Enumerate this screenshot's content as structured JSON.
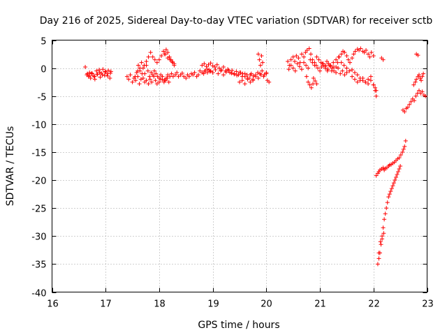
{
  "chart_data": {
    "type": "scatter",
    "title": "Day 216 of 2025, Sidereal Day-to-day VTEC variation (SDTVAR) for receiver sctb",
    "xlabel": "GPS time / hours",
    "ylabel": "SDTVAR / TECUs",
    "xlim": [
      16,
      23
    ],
    "ylim": [
      -40,
      5
    ],
    "xticks": [
      "16",
      "17",
      "18",
      "19",
      "20",
      "21",
      "22",
      "23"
    ],
    "yticks": [
      "5",
      "0",
      "-5",
      "-10",
      "-15",
      "-20",
      "-25",
      "-30",
      "-35",
      "-40"
    ],
    "grid": true,
    "marker": "+",
    "color": "#ff0000",
    "series": [
      {
        "name": "SDTVAR",
        "x": [
          16.62,
          16.65,
          16.68,
          16.7,
          16.72,
          16.75,
          16.78,
          16.8,
          16.83,
          16.85,
          16.88,
          16.9,
          16.92,
          16.95,
          16.98,
          17.0,
          17.03,
          17.05,
          17.08,
          17.1,
          16.66,
          16.7,
          16.74,
          16.79,
          16.84,
          16.89,
          16.94,
          16.99,
          17.04,
          17.09,
          17.4,
          17.43,
          17.46,
          17.5,
          17.53,
          17.56,
          17.6,
          17.63,
          17.66,
          17.7,
          17.73,
          17.76,
          17.8,
          17.83,
          17.86,
          17.9,
          17.93,
          17.96,
          18.0,
          18.03,
          18.06,
          18.1,
          18.13,
          18.16,
          18.2,
          18.23,
          18.26,
          18.3,
          18.33,
          18.36,
          18.4,
          18.43,
          18.46,
          18.5,
          18.53,
          18.56,
          18.6,
          18.63,
          18.66,
          18.7,
          18.73,
          18.76,
          18.8,
          18.83,
          18.86,
          18.9,
          18.93,
          18.96,
          17.6,
          17.64,
          17.68,
          17.72,
          17.76,
          17.8,
          17.84,
          17.88,
          17.92,
          17.96,
          18.0,
          18.04,
          18.08,
          18.12,
          18.16,
          18.2,
          18.24,
          18.28,
          17.55,
          17.58,
          17.61,
          17.64,
          17.67,
          17.7,
          17.73,
          17.76,
          17.79,
          17.82,
          17.85,
          17.88,
          17.91,
          17.94,
          17.97,
          18.0,
          18.03,
          18.06,
          18.09,
          18.12,
          18.15,
          18.18,
          18.1,
          18.13,
          18.16,
          18.19,
          18.22,
          18.25,
          18.28,
          18.8,
          18.84,
          18.88,
          18.92,
          18.96,
          19.0,
          19.04,
          19.08,
          19.12,
          19.16,
          19.2,
          19.24,
          19.28,
          19.32,
          19.36,
          19.4,
          19.44,
          19.48,
          19.52,
          19.56,
          19.6,
          19.64,
          19.68,
          19.72,
          19.76,
          19.8,
          19.84,
          19.88,
          19.92,
          19.96,
          20.0,
          18.85,
          18.9,
          18.95,
          19.0,
          19.05,
          19.1,
          19.15,
          19.2,
          19.25,
          19.3,
          19.35,
          19.4,
          19.45,
          19.5,
          19.55,
          19.6,
          19.65,
          19.7,
          19.75,
          19.8,
          19.85,
          19.9,
          19.95,
          19.5,
          19.55,
          19.6,
          19.65,
          19.7,
          19.75,
          19.85,
          19.87,
          19.89,
          19.91,
          19.93,
          20.0,
          20.02,
          20.05,
          20.4,
          20.43,
          20.46,
          20.5,
          20.53,
          20.56,
          20.6,
          20.63,
          20.66,
          20.7,
          20.73,
          20.76,
          20.8,
          20.83,
          20.86,
          20.9,
          20.93,
          20.96,
          21.0,
          21.03,
          21.06,
          21.1,
          21.13,
          21.16,
          21.2,
          21.23,
          21.26,
          21.3,
          21.33,
          21.36,
          21.4,
          21.43,
          21.46,
          21.5,
          21.53,
          21.56,
          21.6,
          21.63,
          21.66,
          21.7,
          21.73,
          21.76,
          21.8,
          21.83,
          21.86,
          21.9,
          21.93,
          21.96,
          22.0,
          20.42,
          20.46,
          20.5,
          20.54,
          20.58,
          20.62,
          20.66,
          20.7,
          20.74,
          20.78,
          20.82,
          20.86,
          20.9,
          20.94,
          20.98,
          21.02,
          21.06,
          21.1,
          21.14,
          21.18,
          21.22,
          21.26,
          21.3,
          21.34,
          21.38,
          21.42,
          21.46,
          21.5,
          20.75,
          20.78,
          20.81,
          20.84,
          20.87,
          20.88,
          20.91,
          20.94,
          21.05,
          21.1,
          21.15,
          21.2,
          21.25,
          21.3,
          21.35,
          21.4,
          21.45,
          21.5,
          21.55,
          21.6,
          21.65,
          21.7,
          21.75,
          21.8,
          21.85,
          21.9,
          21.95,
          22.0,
          22.03,
          22.05,
          21.6,
          21.65,
          21.7,
          21.75,
          21.8,
          21.85,
          21.9,
          21.95,
          22.0,
          22.03,
          22.05,
          22.15,
          22.18,
          22.05,
          22.08,
          22.1,
          22.12,
          22.15,
          22.18,
          22.2,
          22.22,
          22.25,
          22.28,
          22.3,
          22.33,
          22.36,
          22.39,
          22.42,
          22.45,
          22.48,
          22.51,
          22.54,
          22.56,
          22.58,
          22.6,
          22.08,
          22.1,
          22.12,
          22.14,
          22.16,
          22.18,
          22.2,
          22.22,
          22.24,
          22.26,
          22.28,
          22.3,
          22.32,
          22.34,
          22.36,
          22.38,
          22.4,
          22.42,
          22.44,
          22.46,
          22.48,
          22.5,
          22.1,
          22.13,
          22.16,
          22.19,
          22.55,
          22.58,
          22.61,
          22.64,
          22.67,
          22.7,
          22.73,
          22.76,
          22.79,
          22.82,
          22.85,
          22.88,
          22.91,
          22.94,
          22.97,
          22.75,
          22.78,
          22.8,
          22.83,
          22.85,
          22.87,
          22.89,
          22.91,
          22.93,
          22.8,
          22.83
        ],
        "y": [
          0.2,
          -1.2,
          -1.5,
          -0.8,
          -1.8,
          -1.0,
          -1.4,
          -2.0,
          -0.5,
          -1.1,
          -0.3,
          -1.6,
          -0.9,
          -0.2,
          -1.3,
          -0.7,
          -1.0,
          -0.4,
          -1.8,
          -0.6,
          -1.0,
          -1.3,
          -0.9,
          -1.5,
          -1.1,
          -0.8,
          -1.2,
          -0.6,
          -1.4,
          -0.9,
          -1.5,
          -2.0,
          -1.2,
          -2.5,
          -1.8,
          -2.2,
          -1.5,
          -2.8,
          -2.0,
          -1.8,
          -2.5,
          -2.2,
          -2.8,
          -2.0,
          -2.5,
          -1.5,
          -2.2,
          -2.8,
          -2.5,
          -2.0,
          -1.5,
          -2.2,
          -1.8,
          -1.2,
          -1.5,
          -1.0,
          -1.5,
          -1.2,
          -0.8,
          -1.5,
          -1.2,
          -0.9,
          -1.5,
          -1.8,
          -1.2,
          -1.5,
          -1.0,
          -1.2,
          -0.8,
          -1.5,
          -1.2,
          -0.5,
          -0.8,
          -1.0,
          -0.5,
          -0.8,
          -0.3,
          -0.5,
          -0.5,
          0.0,
          -1.0,
          0.5,
          1.2,
          2.0,
          2.8,
          2.0,
          1.5,
          1.0,
          1.5,
          2.2,
          3.0,
          2.5,
          1.8,
          1.5,
          1.2,
          0.8,
          -1.5,
          -0.8,
          0.5,
          -0.5,
          1.0,
          0.0,
          -1.0,
          0.5,
          -0.5,
          -1.5,
          -0.8,
          -1.2,
          -0.5,
          -1.0,
          -1.5,
          -1.8,
          -1.2,
          -2.0,
          -2.5,
          -2.2,
          -1.8,
          -2.5,
          2.5,
          3.3,
          2.8,
          2.0,
          1.5,
          1.0,
          0.5,
          0.5,
          0.8,
          0.3,
          0.6,
          0.9,
          0.4,
          0.2,
          0.6,
          0.0,
          -0.3,
          0.2,
          -0.5,
          -0.2,
          -0.8,
          -0.4,
          -1.0,
          -0.6,
          -1.2,
          -0.8,
          -1.0,
          -1.5,
          -1.2,
          -1.8,
          -1.0,
          -1.4,
          -1.2,
          -0.8,
          -1.0,
          -0.5,
          -1.2,
          -0.8,
          -0.5,
          -0.2,
          -0.6,
          -0.8,
          -0.3,
          -1.0,
          -0.5,
          -1.2,
          -0.7,
          -0.4,
          -0.9,
          -1.1,
          -1.3,
          -0.8,
          -1.5,
          -1.0,
          -1.8,
          -1.2,
          -2.0,
          -1.5,
          -1.8,
          -1.2,
          -1.5,
          -2.5,
          -2.2,
          -2.8,
          -2.0,
          -2.5,
          -2.2,
          2.5,
          1.5,
          0.5,
          2.2,
          1.0,
          -1.0,
          -2.2,
          -2.5,
          1.2,
          0.5,
          1.5,
          2.0,
          1.2,
          2.2,
          1.8,
          1.0,
          2.5,
          2.0,
          2.8,
          3.2,
          3.5,
          2.5,
          1.5,
          1.0,
          0.5,
          0.0,
          -0.5,
          0.2,
          0.8,
          0.5,
          1.2,
          0.8,
          0.3,
          0.0,
          -0.5,
          0.2,
          1.0,
          2.0,
          2.5,
          3.0,
          2.8,
          2.2,
          1.5,
          1.0,
          1.8,
          2.5,
          3.0,
          3.4,
          3.2,
          3.5,
          3.0,
          2.8,
          3.2,
          2.5,
          2.0,
          2.8,
          2.2,
          -0.2,
          0.5,
          0.0,
          -0.5,
          0.8,
          0.3,
          -0.2,
          1.0,
          0.5,
          0.0,
          1.5,
          1.0,
          0.5,
          2.0,
          1.5,
          1.0,
          0.5,
          0.0,
          -0.5,
          0.5,
          -0.5,
          0.2,
          -0.8,
          0.0,
          -1.0,
          -0.5,
          -1.2,
          -0.8,
          -1.5,
          -2.5,
          -3.0,
          -3.5,
          -2.8,
          -1.8,
          -2.3,
          -2.8,
          0.8,
          0.3,
          -0.2,
          0.5,
          1.0,
          1.5,
          2.0,
          1.0,
          0.5,
          0.0,
          -0.5,
          -0.3,
          -0.8,
          -1.2,
          -1.8,
          -2.2,
          -2.5,
          -2.0,
          -1.5,
          -3.0,
          -4.0,
          -5.0,
          -1.5,
          -2.0,
          -2.5,
          -2.2,
          -1.8,
          -2.5,
          -2.8,
          -2.2,
          -3.0,
          -3.5,
          -4.0,
          1.8,
          1.5,
          -19.2,
          -18.8,
          -18.5,
          -18.2,
          -18.0,
          -17.8,
          -18.2,
          -17.9,
          -17.8,
          -17.5,
          -17.3,
          -17.2,
          -17.0,
          -16.8,
          -16.5,
          -16.2,
          -16.0,
          -15.5,
          -15.0,
          -14.5,
          -14.0,
          -13.0,
          -35.0,
          -34.0,
          -33.0,
          -31.5,
          -30.0,
          -28.5,
          -27.0,
          -26.0,
          -25.0,
          -24.0,
          -23.0,
          -22.5,
          -22.0,
          -21.5,
          -21.0,
          -20.5,
          -20.0,
          -19.5,
          -19.0,
          -18.5,
          -18.0,
          -17.5,
          -33.0,
          -31.0,
          -30.5,
          -29.5,
          -7.5,
          -7.8,
          -7.2,
          -7.0,
          -6.5,
          -6.0,
          -5.5,
          -5.8,
          -5.0,
          -4.5,
          -4.0,
          -4.5,
          -4.2,
          -4.8,
          -5.0,
          -3.0,
          -2.5,
          -2.0,
          -1.5,
          -1.2,
          -1.8,
          -2.2,
          -1.5,
          -1.0,
          2.5,
          2.3
        ]
      }
    ]
  }
}
